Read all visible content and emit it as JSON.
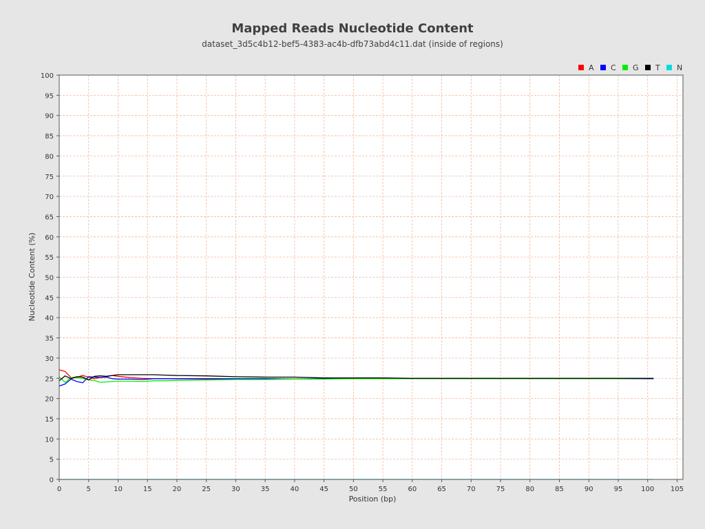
{
  "chart_data": {
    "type": "line",
    "title": "Mapped Reads Nucleotide Content",
    "subtitle": "dataset_3d5c4b12-bef5-4383-ac4b-dfb73abd4c11.dat (inside of regions)",
    "xlabel": "Position (bp)",
    "ylabel": "Nucleotide Content (%)",
    "xlim": [
      0,
      106
    ],
    "ylim": [
      0,
      100
    ],
    "xticks": [
      0,
      5,
      10,
      15,
      20,
      25,
      30,
      35,
      40,
      45,
      50,
      55,
      60,
      65,
      70,
      75,
      80,
      85,
      90,
      95,
      100,
      105
    ],
    "yticks": [
      0,
      5,
      10,
      15,
      20,
      25,
      30,
      35,
      40,
      45,
      50,
      55,
      60,
      65,
      70,
      75,
      80,
      85,
      90,
      95,
      100
    ],
    "grid": true,
    "legend_position": "top-right",
    "series": [
      {
        "name": "A",
        "color": "#ff0000",
        "x": [
          0,
          1,
          2,
          3,
          4,
          5,
          6,
          7,
          8,
          9,
          10,
          12,
          14,
          16,
          18,
          20,
          25,
          30,
          35,
          40,
          45,
          50,
          55,
          60,
          65,
          70,
          75,
          80,
          85,
          90,
          95,
          101
        ],
        "y": [
          27.1,
          26.7,
          25.2,
          25.3,
          25.7,
          25.3,
          24.9,
          25.2,
          25.4,
          25.7,
          25.5,
          25.2,
          25.0,
          24.9,
          24.9,
          24.9,
          24.8,
          24.8,
          24.9,
          24.8,
          24.9,
          24.9,
          24.9,
          24.9,
          24.9,
          24.9,
          24.9,
          24.9,
          24.9,
          24.9,
          24.9,
          24.9
        ]
      },
      {
        "name": "C",
        "color": "#0000ff",
        "x": [
          0,
          1,
          2,
          3,
          4,
          5,
          6,
          7,
          8,
          9,
          10,
          12,
          14,
          16,
          18,
          20,
          25,
          30,
          35,
          40,
          45,
          50,
          55,
          60,
          65,
          70,
          75,
          80,
          85,
          90,
          95,
          101
        ],
        "y": [
          23.1,
          23.6,
          24.8,
          24.2,
          23.9,
          25.4,
          25.3,
          25.2,
          25.3,
          24.9,
          24.8,
          24.8,
          24.7,
          24.9,
          24.9,
          24.9,
          24.9,
          24.9,
          24.9,
          24.8,
          24.9,
          24.9,
          24.9,
          24.9,
          24.9,
          24.9,
          24.9,
          24.9,
          24.9,
          24.9,
          24.9,
          24.9
        ]
      },
      {
        "name": "G",
        "color": "#00ee00",
        "x": [
          0,
          1,
          2,
          3,
          4,
          5,
          6,
          7,
          8,
          9,
          10,
          12,
          14,
          16,
          18,
          20,
          25,
          30,
          35,
          40,
          45,
          50,
          55,
          60,
          65,
          70,
          75,
          80,
          85,
          90,
          95,
          101
        ],
        "y": [
          25.4,
          24.0,
          25.2,
          25.1,
          25.0,
          24.6,
          24.5,
          24.0,
          24.1,
          24.2,
          24.3,
          24.3,
          24.2,
          24.4,
          24.4,
          24.5,
          24.6,
          24.7,
          24.7,
          24.8,
          24.8,
          24.9,
          24.9,
          24.9,
          24.9,
          24.9,
          24.9,
          24.9,
          24.9,
          24.9,
          24.9,
          25.0
        ]
      },
      {
        "name": "T",
        "color": "#000000",
        "x": [
          0,
          1,
          2,
          3,
          4,
          5,
          6,
          7,
          8,
          9,
          10,
          12,
          14,
          16,
          18,
          20,
          25,
          30,
          35,
          40,
          45,
          50,
          55,
          60,
          65,
          70,
          75,
          80,
          85,
          90,
          95,
          101
        ],
        "y": [
          24.4,
          25.6,
          24.9,
          25.4,
          25.3,
          24.6,
          25.5,
          25.6,
          25.5,
          25.7,
          25.9,
          25.9,
          25.9,
          25.9,
          25.8,
          25.7,
          25.6,
          25.4,
          25.3,
          25.3,
          25.1,
          25.1,
          25.1,
          25.0,
          25.0,
          25.0,
          25.0,
          25.0,
          25.0,
          25.0,
          25.0,
          25.0
        ]
      },
      {
        "name": "N",
        "color": "#00dddd",
        "x": [
          0,
          101
        ],
        "y": [
          0.0,
          0.0
        ]
      }
    ]
  },
  "colors": {
    "background": "#e6e6e6",
    "plot_background": "#ffffff",
    "grid": "#f0b898",
    "axis": "#555555"
  }
}
